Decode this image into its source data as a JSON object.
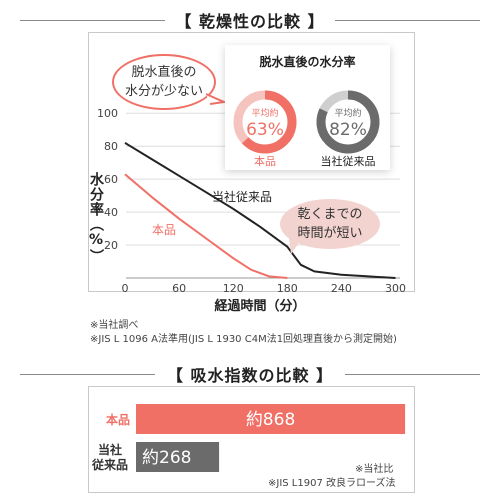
{
  "section1": {
    "title": "【 乾燥性の比較 】"
  },
  "section2": {
    "title": "【 吸水指数の比較 】"
  },
  "donut_card": {
    "title": "脱水直後の水分率",
    "donut_prefix": "平均約",
    "items": [
      {
        "value_text": "63%",
        "label": "本品",
        "percent": 63,
        "color": "#f07066",
        "track": "#f6c4bf"
      },
      {
        "value_text": "82%",
        "label": "当社従来品",
        "percent": 82,
        "color": "#6b6b6b",
        "track": "#cfcfcf"
      }
    ]
  },
  "bubbles": {
    "left": [
      "脱水直後の",
      "水分が少ない"
    ],
    "right": [
      "乾くまでの",
      "時間が短い"
    ]
  },
  "dry_notes": [
    "※当社調べ",
    "※JIS L 1096 A法準用(JIS L 1930 C4M法1回処理直後から測定開始)"
  ],
  "absorb_notes": [
    "※当社比",
    "※JIS L1907 改良ラローズ法"
  ],
  "colors": {
    "product": "#f07066",
    "conventional": "#222222",
    "bar_gray": "#6b6b6b"
  },
  "chart_data": [
    {
      "type": "line",
      "xlabel": "経過時間（分）",
      "ylabel": "水分率（%）",
      "x_ticks": [
        0,
        60,
        120,
        180,
        240,
        300
      ],
      "y_ticks": [
        20,
        40,
        60,
        80,
        100
      ],
      "xlim": [
        -10,
        305
      ],
      "ylim": [
        0,
        105
      ],
      "series": [
        {
          "name": "当社従来品",
          "color": "#222222",
          "x": [
            0,
            30,
            60,
            90,
            120,
            150,
            180,
            195,
            210,
            240,
            270,
            300
          ],
          "y": [
            82,
            72,
            62,
            52,
            42,
            31,
            19,
            8,
            4,
            2,
            1,
            0
          ]
        },
        {
          "name": "本品",
          "color": "#f07066",
          "x": [
            0,
            30,
            60,
            90,
            120,
            140,
            160,
            180
          ],
          "y": [
            63,
            49,
            36,
            24,
            12,
            5,
            1,
            0
          ]
        }
      ]
    },
    {
      "type": "bar",
      "orientation": "horizontal",
      "categories": [
        "本品",
        "当社従来品"
      ],
      "category_lines": [
        [
          "本品"
        ],
        [
          "当社",
          "従来品"
        ]
      ],
      "values": [
        868,
        268
      ],
      "value_labels": [
        "約868",
        "約268"
      ],
      "colors": [
        "#f07066",
        "#6b6b6b"
      ],
      "xlim": [
        0,
        1000
      ]
    }
  ]
}
